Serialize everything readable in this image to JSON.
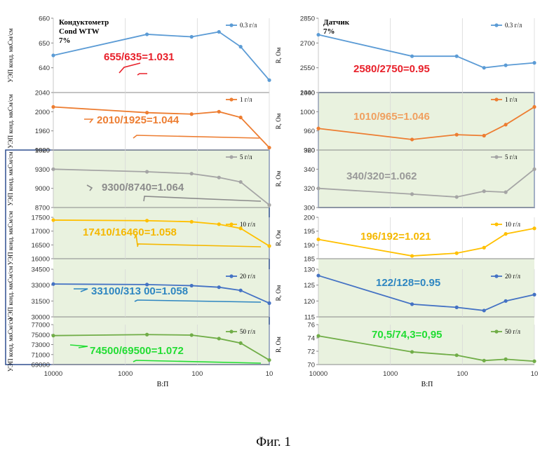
{
  "figure": {
    "caption": "Фиг. 1",
    "xlabel": "В:П",
    "x_ticks": [
      10000,
      1000,
      100,
      10
    ],
    "left_title_line1": "Кондуктометр",
    "left_title_line2": "Cond WTW",
    "left_title_line3": "7%",
    "right_title_line1": "Датчик",
    "right_title_line2": "7%",
    "highlight_fill": "#e9f2df",
    "highlight_border": "#2f4f8f"
  },
  "chart_data": [
    {
      "type": "line",
      "side": "left",
      "ylabel": "УЭП конд. мкСм/см",
      "legend": "0.3 г/л",
      "color": "#5b9bd5",
      "x": [
        10000,
        500,
        120,
        50,
        25,
        10
      ],
      "y": [
        645,
        653.5,
        652.5,
        654.5,
        648.5,
        635
      ],
      "ylim": [
        630,
        660
      ],
      "yticks": [
        640,
        650,
        660
      ],
      "annotation": "655/635=1.031",
      "annotation_color": "#e8202a"
    },
    {
      "type": "line",
      "side": "left",
      "ylabel": "УЭП конд. мкСм/см",
      "legend": "1 г/л",
      "color": "#ed7d31",
      "x": [
        10000,
        500,
        120,
        50,
        25,
        10
      ],
      "y": [
        2010,
        1998,
        1995,
        2000,
        1988,
        1925
      ],
      "ylim": [
        1920,
        2040
      ],
      "yticks": [
        1920,
        1960,
        2000,
        2040
      ],
      "annotation": "2010/1925=1.044",
      "annotation_color": "#ed7d31"
    },
    {
      "type": "line",
      "side": "left",
      "ylabel": "УЭП конд. мкСм/см",
      "legend": "5 г/л",
      "color": "#a5a5a5",
      "x": [
        10000,
        500,
        120,
        50,
        25,
        10
      ],
      "y": [
        9300,
        9260,
        9230,
        9170,
        9100,
        8740
      ],
      "ylim": [
        8700,
        9600
      ],
      "yticks": [
        8700,
        9000,
        9300,
        9600
      ],
      "annotation": "9300/8740=1.064",
      "annotation_color": "#8c8c8c"
    },
    {
      "type": "line",
      "side": "left",
      "ylabel": "УЭП конд. мкСм/см",
      "legend": "10 г/л",
      "color": "#ffc000",
      "x": [
        10000,
        500,
        120,
        50,
        25,
        10
      ],
      "y": [
        17400,
        17380,
        17340,
        17250,
        17100,
        16460
      ],
      "ylim": [
        16000,
        17500
      ],
      "yticks": [
        16000,
        16500,
        17000,
        17500
      ],
      "annotation": "17410/16460=1.058",
      "annotation_color": "#f5b800"
    },
    {
      "type": "line",
      "side": "left",
      "ylabel": "УЭП конд. мкСм/см",
      "legend": "20 г/л",
      "color": "#4472c4",
      "x": [
        10000,
        500,
        120,
        50,
        25,
        10
      ],
      "y": [
        33100,
        33050,
        32950,
        32800,
        32500,
        31300
      ],
      "ylim": [
        30000,
        34500
      ],
      "yticks": [
        30000,
        31500,
        33000,
        34500
      ],
      "annotation": "33100/313 00=1.058",
      "annotation_color": "#2e86c1"
    },
    {
      "type": "line",
      "side": "left",
      "ylabel": "УЭП конд. мкСм/см",
      "legend": "50 г/л",
      "color": "#70ad47",
      "x": [
        10000,
        500,
        120,
        50,
        25,
        10
      ],
      "y": [
        74800,
        75000,
        74900,
        74200,
        73300,
        69900
      ],
      "ylim": [
        69000,
        77000
      ],
      "yticks": [
        69000,
        71000,
        73000,
        75000,
        77000
      ],
      "annotation": "74500/69500=1.072",
      "annotation_color": "#22dd33"
    },
    {
      "type": "line",
      "side": "right",
      "ylabel": "R, Ом",
      "legend": "0.3 г/л",
      "color": "#5b9bd5",
      "x": [
        10000,
        500,
        120,
        50,
        25,
        10
      ],
      "y": [
        2750,
        2620,
        2620,
        2550,
        2565,
        2580
      ],
      "ylim": [
        2400,
        2850
      ],
      "yticks": [
        2400,
        2550,
        2700,
        2850
      ],
      "annotation": "2580/2750=0.95",
      "annotation_color": "#e8202a"
    },
    {
      "type": "line",
      "side": "right",
      "ylabel": "R, Ом",
      "legend": "1 г/л",
      "color": "#ed7d31",
      "x": [
        10000,
        500,
        120,
        50,
        25,
        10
      ],
      "y": [
        965,
        942,
        952,
        950,
        973,
        1010
      ],
      "ylim": [
        920,
        1040
      ],
      "yticks": [
        920,
        960,
        1000,
        1040
      ],
      "annotation": "1010/965=1.046",
      "annotation_color": "#f0a060"
    },
    {
      "type": "line",
      "side": "right",
      "ylabel": "R, Ом",
      "legend": "5 г/л",
      "color": "#a5a5a5",
      "x": [
        10000,
        500,
        120,
        50,
        25,
        10
      ],
      "y": [
        320,
        314,
        311,
        317,
        316,
        340
      ],
      "ylim": [
        300,
        360
      ],
      "yticks": [
        300,
        320,
        340,
        360
      ],
      "annotation": "340/320=1.062",
      "annotation_color": "#999999"
    },
    {
      "type": "line",
      "side": "right",
      "ylabel": "R, Ом",
      "legend": "10 г/л",
      "color": "#ffc000",
      "x": [
        10000,
        500,
        120,
        50,
        25,
        10
      ],
      "y": [
        192,
        186,
        187,
        189,
        194,
        196
      ],
      "ylim": [
        185,
        200
      ],
      "yticks": [
        185,
        190,
        195,
        200
      ],
      "annotation": "196/192=1.021",
      "annotation_color": "#f5b800"
    },
    {
      "type": "line",
      "side": "right",
      "ylabel": "R, Ом",
      "legend": "20 г/л",
      "color": "#4472c4",
      "x": [
        10000,
        500,
        120,
        50,
        25,
        10
      ],
      "y": [
        128,
        119,
        118,
        117,
        120,
        122
      ],
      "ylim": [
        115,
        130
      ],
      "yticks": [
        115,
        120,
        125,
        130
      ],
      "annotation": "122/128=0.95",
      "annotation_color": "#2e86c1"
    },
    {
      "type": "line",
      "side": "right",
      "ylabel": "R, Ом",
      "legend": "50 г/л",
      "color": "#70ad47",
      "x": [
        10000,
        500,
        120,
        50,
        25,
        10
      ],
      "y": [
        74.3,
        71.9,
        71.4,
        70.6,
        70.8,
        70.5
      ],
      "ylim": [
        70,
        76
      ],
      "yticks": [
        70,
        72,
        74,
        76
      ],
      "annotation": "70,5/74,3=0,95",
      "annotation_color": "#22dd33"
    }
  ]
}
